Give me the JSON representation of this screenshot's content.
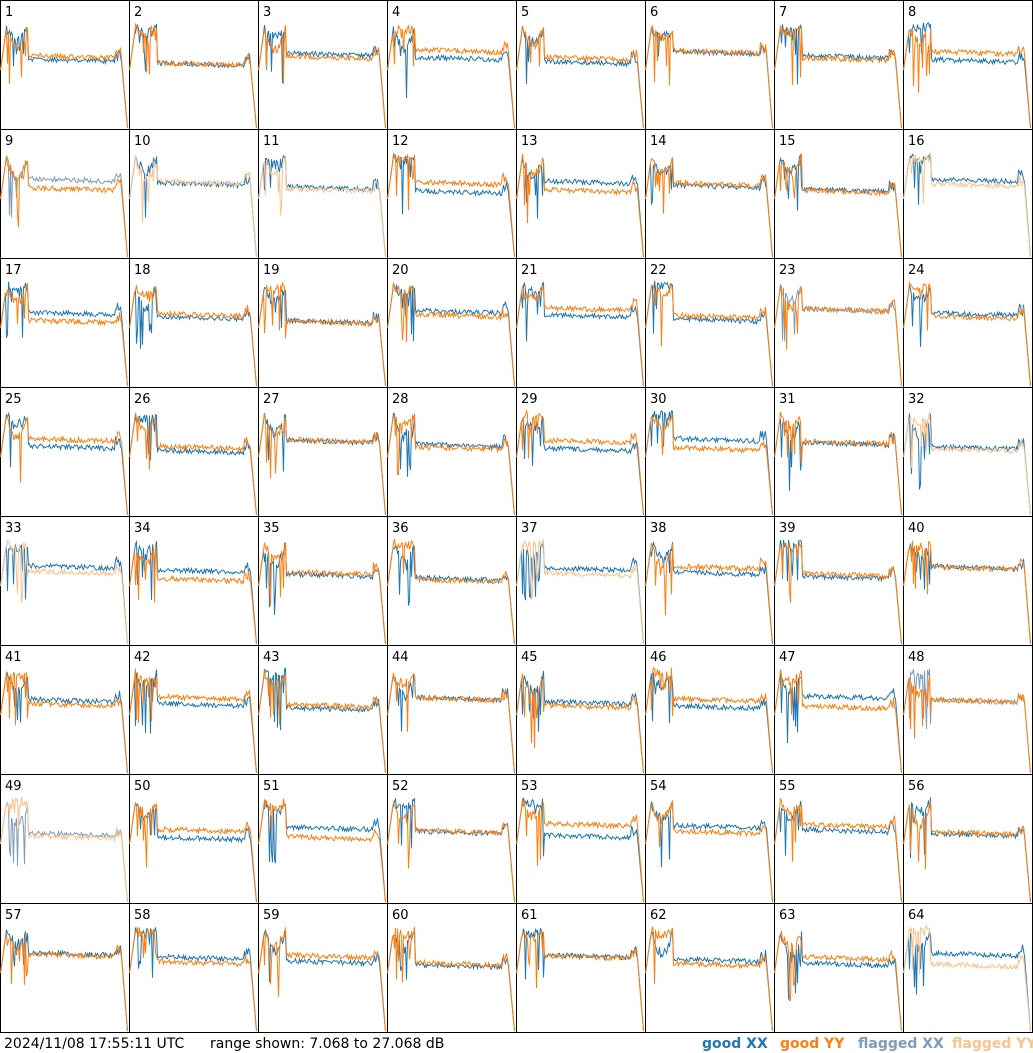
{
  "footer": {
    "timestamp": "2024/11/08 17:55:11 UTC",
    "range": "range shown: 7.068 to 27.068 dB"
  },
  "legend": [
    {
      "label": "good XX",
      "color": "#1f77b4"
    },
    {
      "label": "good YY",
      "color": "#ff7f0e"
    },
    {
      "label": "flagged XX",
      "color": "#7f9cb8"
    },
    {
      "label": "flagged YY",
      "color": "#fdc28e"
    }
  ],
  "panels": [
    {
      "label": "1",
      "xx": "#1f77b4",
      "yy": "#ff7f0e"
    },
    {
      "label": "2",
      "xx": "#1f77b4",
      "yy": "#ff7f0e"
    },
    {
      "label": "3",
      "xx": "#1f77b4",
      "yy": "#ff7f0e"
    },
    {
      "label": "4",
      "xx": "#1f77b4",
      "yy": "#ff7f0e"
    },
    {
      "label": "5",
      "xx": "#1f77b4",
      "yy": "#ff7f0e"
    },
    {
      "label": "6",
      "xx": "#1f77b4",
      "yy": "#ff7f0e"
    },
    {
      "label": "7",
      "xx": "#1f77b4",
      "yy": "#ff7f0e"
    },
    {
      "label": "8",
      "xx": "#1f77b4",
      "yy": "#ff7f0e"
    },
    {
      "label": "9",
      "xx": "#7f9cb8",
      "yy": "#ff7f0e"
    },
    {
      "label": "10",
      "xx": "#1f77b4",
      "yy": "#fdc28e"
    },
    {
      "label": "11",
      "xx": "#1f77b4",
      "yy": "#fdc28e"
    },
    {
      "label": "12",
      "xx": "#1f77b4",
      "yy": "#ff7f0e"
    },
    {
      "label": "13",
      "xx": "#1f77b4",
      "yy": "#ff7f0e"
    },
    {
      "label": "14",
      "xx": "#1f77b4",
      "yy": "#ff7f0e"
    },
    {
      "label": "15",
      "xx": "#1f77b4",
      "yy": "#ff7f0e"
    },
    {
      "label": "16",
      "xx": "#1f77b4",
      "yy": "#fdc28e"
    },
    {
      "label": "17",
      "xx": "#1f77b4",
      "yy": "#ff7f0e"
    },
    {
      "label": "18",
      "xx": "#1f77b4",
      "yy": "#ff7f0e"
    },
    {
      "label": "19",
      "xx": "#1f77b4",
      "yy": "#ff7f0e"
    },
    {
      "label": "20",
      "xx": "#1f77b4",
      "yy": "#ff7f0e"
    },
    {
      "label": "21",
      "xx": "#1f77b4",
      "yy": "#ff7f0e"
    },
    {
      "label": "22",
      "xx": "#1f77b4",
      "yy": "#ff7f0e"
    },
    {
      "label": "23",
      "xx": "#7f9cb8",
      "yy": "#ff7f0e"
    },
    {
      "label": "24",
      "xx": "#1f77b4",
      "yy": "#ff7f0e"
    },
    {
      "label": "25",
      "xx": "#1f77b4",
      "yy": "#ff7f0e"
    },
    {
      "label": "26",
      "xx": "#1f77b4",
      "yy": "#ff7f0e"
    },
    {
      "label": "27",
      "xx": "#1f77b4",
      "yy": "#ff7f0e"
    },
    {
      "label": "28",
      "xx": "#1f77b4",
      "yy": "#ff7f0e"
    },
    {
      "label": "29",
      "xx": "#1f77b4",
      "yy": "#ff7f0e"
    },
    {
      "label": "30",
      "xx": "#1f77b4",
      "yy": "#ff7f0e"
    },
    {
      "label": "31",
      "xx": "#1f77b4",
      "yy": "#ff7f0e"
    },
    {
      "label": "32",
      "xx": "#1f77b4",
      "yy": "#fdc28e"
    },
    {
      "label": "33",
      "xx": "#1f77b4",
      "yy": "#fdc28e"
    },
    {
      "label": "34",
      "xx": "#1f77b4",
      "yy": "#ff7f0e"
    },
    {
      "label": "35",
      "xx": "#1f77b4",
      "yy": "#ff7f0e"
    },
    {
      "label": "36",
      "xx": "#1f77b4",
      "yy": "#ff7f0e"
    },
    {
      "label": "37",
      "xx": "#1f77b4",
      "yy": "#fdc28e"
    },
    {
      "label": "38",
      "xx": "#1f77b4",
      "yy": "#ff7f0e"
    },
    {
      "label": "39",
      "xx": "#1f77b4",
      "yy": "#ff7f0e"
    },
    {
      "label": "40",
      "xx": "#1f77b4",
      "yy": "#ff7f0e"
    },
    {
      "label": "41",
      "xx": "#1f77b4",
      "yy": "#ff7f0e"
    },
    {
      "label": "42",
      "xx": "#1f77b4",
      "yy": "#ff7f0e"
    },
    {
      "label": "43",
      "xx": "#1f77b4",
      "yy": "#ff7f0e"
    },
    {
      "label": "44",
      "xx": "#1f77b4",
      "yy": "#ff7f0e"
    },
    {
      "label": "45",
      "xx": "#1f77b4",
      "yy": "#ff7f0e"
    },
    {
      "label": "46",
      "xx": "#1f77b4",
      "yy": "#ff7f0e"
    },
    {
      "label": "47",
      "xx": "#1f77b4",
      "yy": "#ff7f0e"
    },
    {
      "label": "48",
      "xx": "#7f9cb8",
      "yy": "#ff7f0e"
    },
    {
      "label": "49",
      "xx": "#7f9cb8",
      "yy": "#fdc28e"
    },
    {
      "label": "50",
      "xx": "#1f77b4",
      "yy": "#ff7f0e"
    },
    {
      "label": "51",
      "xx": "#1f77b4",
      "yy": "#ff7f0e"
    },
    {
      "label": "52",
      "xx": "#1f77b4",
      "yy": "#ff7f0e"
    },
    {
      "label": "53",
      "xx": "#1f77b4",
      "yy": "#ff7f0e"
    },
    {
      "label": "54",
      "xx": "#1f77b4",
      "yy": "#ff7f0e"
    },
    {
      "label": "55",
      "xx": "#1f77b4",
      "yy": "#ff7f0e"
    },
    {
      "label": "56",
      "xx": "#1f77b4",
      "yy": "#ff7f0e"
    },
    {
      "label": "57",
      "xx": "#1f77b4",
      "yy": "#ff7f0e"
    },
    {
      "label": "58",
      "xx": "#1f77b4",
      "yy": "#ff7f0e"
    },
    {
      "label": "59",
      "xx": "#1f77b4",
      "yy": "#ff7f0e"
    },
    {
      "label": "60",
      "xx": "#1f77b4",
      "yy": "#ff7f0e"
    },
    {
      "label": "61",
      "xx": "#1f77b4",
      "yy": "#ff7f0e"
    },
    {
      "label": "62",
      "xx": "#1f77b4",
      "yy": "#ff7f0e"
    },
    {
      "label": "63",
      "xx": "#1f77b4",
      "yy": "#ff7f0e"
    },
    {
      "label": "64",
      "xx": "#1f77b4",
      "yy": "#fdc28e"
    }
  ]
}
